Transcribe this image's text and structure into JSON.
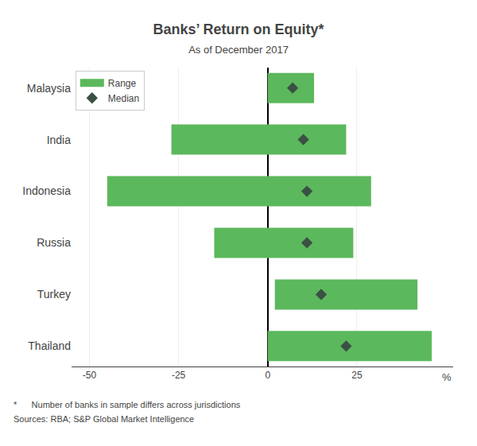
{
  "chart_data": {
    "type": "bar",
    "orientation": "horizontal",
    "title": "Banks’ Return on Equity*",
    "subtitle": "As of December 2017",
    "xlabel": "%",
    "footnotes": [
      "*      Number of banks in sample differs across jurisdictions",
      "Sources: RBA; S&P Global Market Intelligence"
    ],
    "categories": [
      "Malaysia",
      "India",
      "Indonesia",
      "Russia",
      "Turkey",
      "Thailand"
    ],
    "series": [
      {
        "name": "Range",
        "type": "bar",
        "color": "#5cb85c",
        "low": [
          0,
          -27,
          -45,
          -15,
          2,
          0
        ],
        "high": [
          13,
          22,
          29,
          24,
          42,
          46
        ]
      },
      {
        "name": "Median",
        "type": "scatter",
        "marker": "diamond",
        "color": "#3a5045",
        "values": [
          7,
          10,
          11,
          11,
          15,
          22
        ]
      }
    ],
    "xlim": [
      -55,
      52
    ],
    "xticks": [
      -50,
      -25,
      0,
      25
    ],
    "grid": true,
    "legend": "upper left"
  }
}
